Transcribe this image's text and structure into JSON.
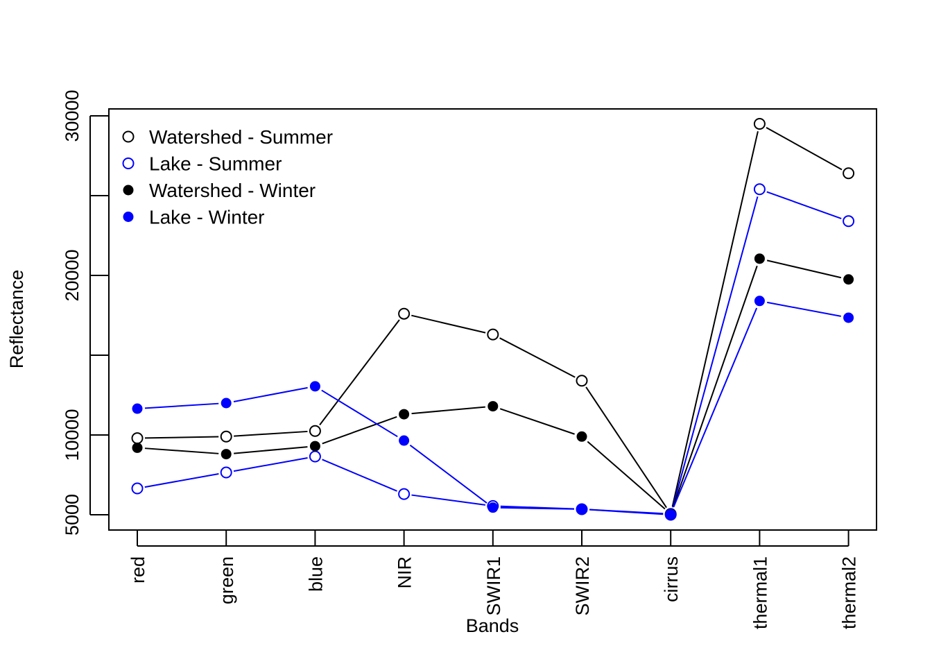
{
  "chart_data": {
    "type": "line",
    "title": "",
    "xlabel": "Bands",
    "ylabel": "Reflectance",
    "categories": [
      "red",
      "green",
      "blue",
      "NIR",
      "SWIR1",
      "SWIR2",
      "cirrus",
      "thermal1",
      "thermal2"
    ],
    "ylim": [
      5000,
      30000
    ],
    "y_ticks": [
      5000,
      10000,
      20000,
      30000
    ],
    "y_tick_labels": [
      "5000",
      "10000",
      "20000",
      "30000"
    ],
    "y_minor_ticks": [
      15000,
      25000
    ],
    "grid": false,
    "legend_position": "top-left",
    "series": [
      {
        "name": "Watershed - Summer",
        "color": "#000000",
        "marker": "open-circle",
        "values": [
          9800,
          9900,
          10250,
          17600,
          16300,
          13400,
          5050,
          29500,
          26400
        ]
      },
      {
        "name": "Lake - Summer",
        "color": "#0000ff",
        "marker": "open-circle",
        "values": [
          6650,
          7650,
          8650,
          6300,
          5550,
          5350,
          5000,
          25400,
          23400
        ]
      },
      {
        "name": "Watershed - Winter",
        "color": "#000000",
        "marker": "filled-circle",
        "values": [
          9200,
          8800,
          9300,
          11300,
          11800,
          9900,
          5050,
          21050,
          19750
        ]
      },
      {
        "name": "Lake - Winter",
        "color": "#0000ff",
        "marker": "filled-circle",
        "values": [
          11650,
          12000,
          13050,
          9650,
          5450,
          5350,
          5050,
          18400,
          17350
        ]
      }
    ]
  }
}
